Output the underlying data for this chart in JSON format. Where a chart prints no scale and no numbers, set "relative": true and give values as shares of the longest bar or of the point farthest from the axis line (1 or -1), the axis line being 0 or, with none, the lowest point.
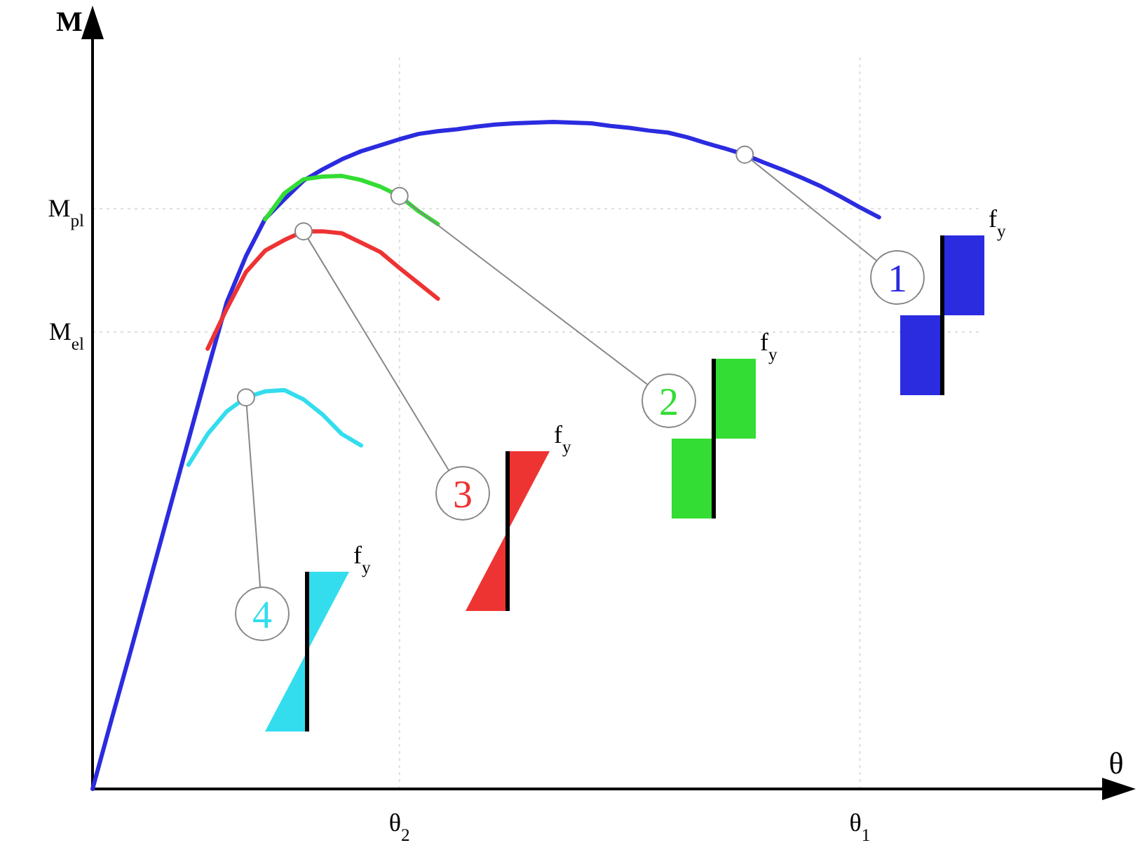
{
  "chart_data": {
    "type": "line",
    "relative": true,
    "ylabel": "M",
    "grid": "x",
    "line_style": "solid",
    "categories": [
      null,
      null,
      null,
      null,
      null,
      null,
      null,
      null,
      null,
      null,
      null,
      null,
      null,
      null,
      null,
      null,
      "θ$_{2}$",
      null,
      null,
      null,
      null,
      null,
      null,
      null,
      null,
      null,
      null,
      null,
      null,
      null,
      null,
      null,
      null,
      null,
      null,
      null,
      null,
      null,
      null,
      null,
      "θ$_{1}$",
      null
    ],
    "series": [
      {
        "color": "#2b2be0",
        "values": [
          0,
          0.105,
          0.208,
          0.313,
          0.418,
          0.523,
          0.628,
          0.73,
          0.799,
          0.855,
          0.884,
          0.912,
          0.929,
          0.944,
          0.956,
          0.965,
          0.974,
          0.982,
          0.986,
          0.989,
          0.993,
          0.996,
          0.998,
          0.999,
          1,
          0.999,
          0.998,
          0.994,
          0.991,
          0.987,
          0.984,
          0.977,
          0.968,
          0.96,
          0.951,
          0.939,
          0.928,
          0.916,
          0.903,
          0.888,
          0.872,
          0.857
        ]
      },
      {
        "color": "#33dd33",
        "values": [
          null,
          null,
          null,
          null,
          null,
          null,
          null,
          null,
          null,
          0.854,
          0.893,
          0.914,
          0.918,
          0.919,
          0.913,
          0.903,
          0.889,
          0.866,
          0.847,
          null,
          null,
          null,
          null,
          null,
          null,
          null,
          null,
          null,
          null,
          null,
          null,
          null,
          null,
          null,
          null,
          null,
          null,
          null,
          null,
          null,
          null,
          null
        ]
      },
      {
        "color": "#ee3333",
        "values": [
          null,
          null,
          null,
          null,
          null,
          null,
          0.66,
          0.72,
          0.775,
          0.807,
          0.823,
          0.836,
          0.836,
          0.833,
          0.819,
          0.805,
          0.781,
          0.758,
          0.735,
          null,
          null,
          null,
          null,
          null,
          null,
          null,
          null,
          null,
          null,
          null,
          null,
          null,
          null,
          null,
          null,
          null,
          null,
          null,
          null,
          null,
          null,
          null
        ]
      },
      {
        "color": "#33ddee",
        "values": [
          null,
          null,
          null,
          null,
          null,
          0.486,
          0.532,
          0.566,
          0.587,
          0.596,
          0.598,
          0.584,
          0.561,
          0.532,
          0.515,
          null,
          null,
          null,
          null,
          null,
          null,
          null,
          null,
          null,
          null,
          null,
          null,
          null,
          null,
          null,
          null,
          null,
          null,
          null,
          null,
          null,
          null,
          null,
          null,
          null,
          null,
          null
        ]
      }
    ],
    "ref_lines": [
      {
        "axis": "y",
        "value": 0.87,
        "label": "M$_{pl}$",
        "line_style": "dotted",
        "color": "#dddddd"
      },
      {
        "axis": "y",
        "value": 0.685,
        "label": "M$_{el}$",
        "line_style": "dotted",
        "color": "#dddddd"
      }
    ],
    "annotations": [
      "1",
      "2",
      "3",
      "4",
      "f$_{y}$",
      "f$_{y}$",
      "f$_{y}$",
      "f$_{y}$",
      "θ"
    ]
  }
}
